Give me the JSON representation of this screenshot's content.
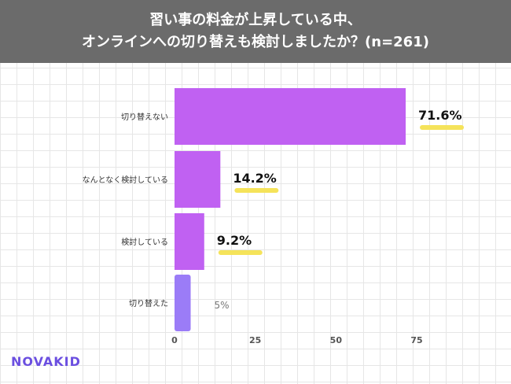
{
  "header": {
    "title_line1": "習い事の料金が上昇している中、",
    "title_line2": "オンラインへの切り替えも検討しましたか？(n=261)"
  },
  "brand": {
    "logo_text": "NOVAKID"
  },
  "colors": {
    "bar_main": "#c061f2",
    "bar_last": "#9b7cf7",
    "highlight": "#f5e35a",
    "header_bg": "#6b6b6b"
  },
  "chart_data": {
    "type": "bar",
    "orientation": "horizontal",
    "title": "習い事の料金が上昇している中、オンラインへの切り替えも検討しましたか？(n=261)",
    "categories": [
      "切り替えない",
      "なんとなく検討している",
      "検討している",
      "切り替えた"
    ],
    "values": [
      71.6,
      14.2,
      9.2,
      5
    ],
    "value_labels": [
      "71.6%",
      "14.2%",
      "9.2%",
      "5%"
    ],
    "xlim": [
      0,
      75
    ],
    "xticks": [
      "0",
      "25",
      "50",
      "75"
    ],
    "xlabel": "",
    "ylabel": ""
  }
}
